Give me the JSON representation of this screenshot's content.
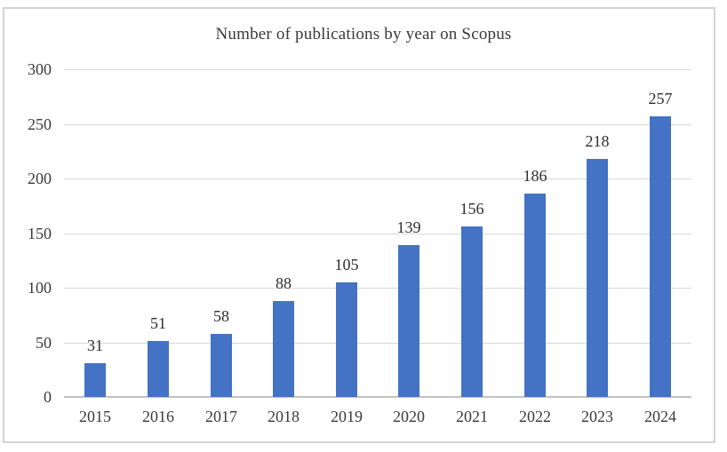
{
  "chart_data": {
    "type": "bar",
    "title": "Number of publications by year on Scopus",
    "categories": [
      "2015",
      "2016",
      "2017",
      "2018",
      "2019",
      "2020",
      "2021",
      "2022",
      "2023",
      "2024"
    ],
    "values": [
      31,
      51,
      58,
      88,
      105,
      139,
      156,
      186,
      218,
      257
    ],
    "xlabel": "",
    "ylabel": "",
    "ylim": [
      0,
      300
    ],
    "yticks": [
      0,
      50,
      100,
      150,
      200,
      250,
      300
    ],
    "grid": true,
    "legend": false,
    "data_labels": true,
    "colors": {
      "bar": "#4472c4",
      "gridline": "#d9d9d9",
      "axis_line": "#c2c2c2",
      "text": "#3a3a3a",
      "frame_border": "#d4d4d4",
      "background": "#ffffff"
    }
  }
}
